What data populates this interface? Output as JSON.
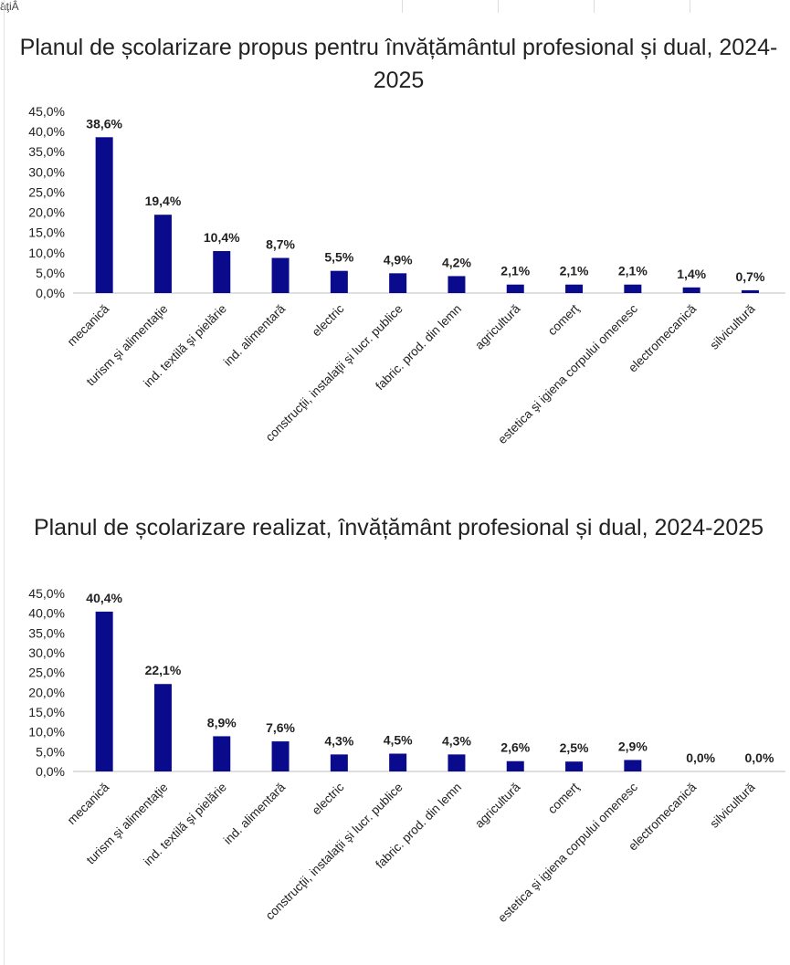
{
  "top_fragment": "ăţiÂ",
  "colors": {
    "bar": "#0a0a8c",
    "axis": "#bfbfbf",
    "text": "#222222"
  },
  "chart_data": [
    {
      "type": "bar",
      "title": "Planul de școlarizare propus pentru învățământul profesional și dual, 2024-2025",
      "categories": [
        "mecanică",
        "turism şi alimentaţie",
        "ind. textilă şi pielărie",
        "ind. alimentară",
        "electric",
        "construcţii, instalaţii şi lucr. publice",
        "fabric. prod. din lemn",
        "agricultură",
        "comerţ",
        "estetica şi igiena corpului omenesc",
        "electromecanică",
        "silvicultură"
      ],
      "values": [
        38.6,
        19.4,
        10.4,
        8.7,
        5.5,
        4.9,
        4.2,
        2.1,
        2.1,
        2.1,
        1.4,
        0.7
      ],
      "data_labels": [
        "38,6%",
        "19,4%",
        "10,4%",
        "8,7%",
        "5,5%",
        "4,9%",
        "4,2%",
        "2,1%",
        "2,1%",
        "2,1%",
        "1,4%",
        "0,7%"
      ],
      "yticks": [
        "0,0%",
        "5,0%",
        "10,0%",
        "15,0%",
        "20,0%",
        "25,0%",
        "30,0%",
        "35,0%",
        "40,0%",
        "45,0%"
      ],
      "ylim": [
        0,
        45
      ],
      "xlabel": "",
      "ylabel": "",
      "grid": false,
      "legend": "none"
    },
    {
      "type": "bar",
      "title": "Planul de școlarizare realizat, învățământ profesional și dual, 2024-2025",
      "categories": [
        "mecanică",
        "turism şi alimentaţie",
        "ind. textilă şi pielărie",
        "ind. alimentară",
        "electric",
        "construcţii, instalaţii şi lucr. publice",
        "fabric. prod. din lemn",
        "agricultură",
        "comerţ",
        "estetica şi igiena corpului omenesc",
        "electromecanică",
        "silvicultură"
      ],
      "values": [
        40.4,
        22.1,
        8.9,
        7.6,
        4.3,
        4.5,
        4.3,
        2.6,
        2.5,
        2.9,
        0.0,
        0.0
      ],
      "data_labels": [
        "40,4%",
        "22,1%",
        "8,9%",
        "7,6%",
        "4,3%",
        "4,5%",
        "4,3%",
        "2,6%",
        "2,5%",
        "2,9%",
        "0,0%",
        "0,0%"
      ],
      "yticks": [
        "0,0%",
        "5,0%",
        "10,0%",
        "15,0%",
        "20,0%",
        "25,0%",
        "30,0%",
        "35,0%",
        "40,0%",
        "45,0%"
      ],
      "ylim": [
        0,
        45
      ],
      "xlabel": "",
      "ylabel": "",
      "grid": false,
      "legend": "none"
    }
  ]
}
